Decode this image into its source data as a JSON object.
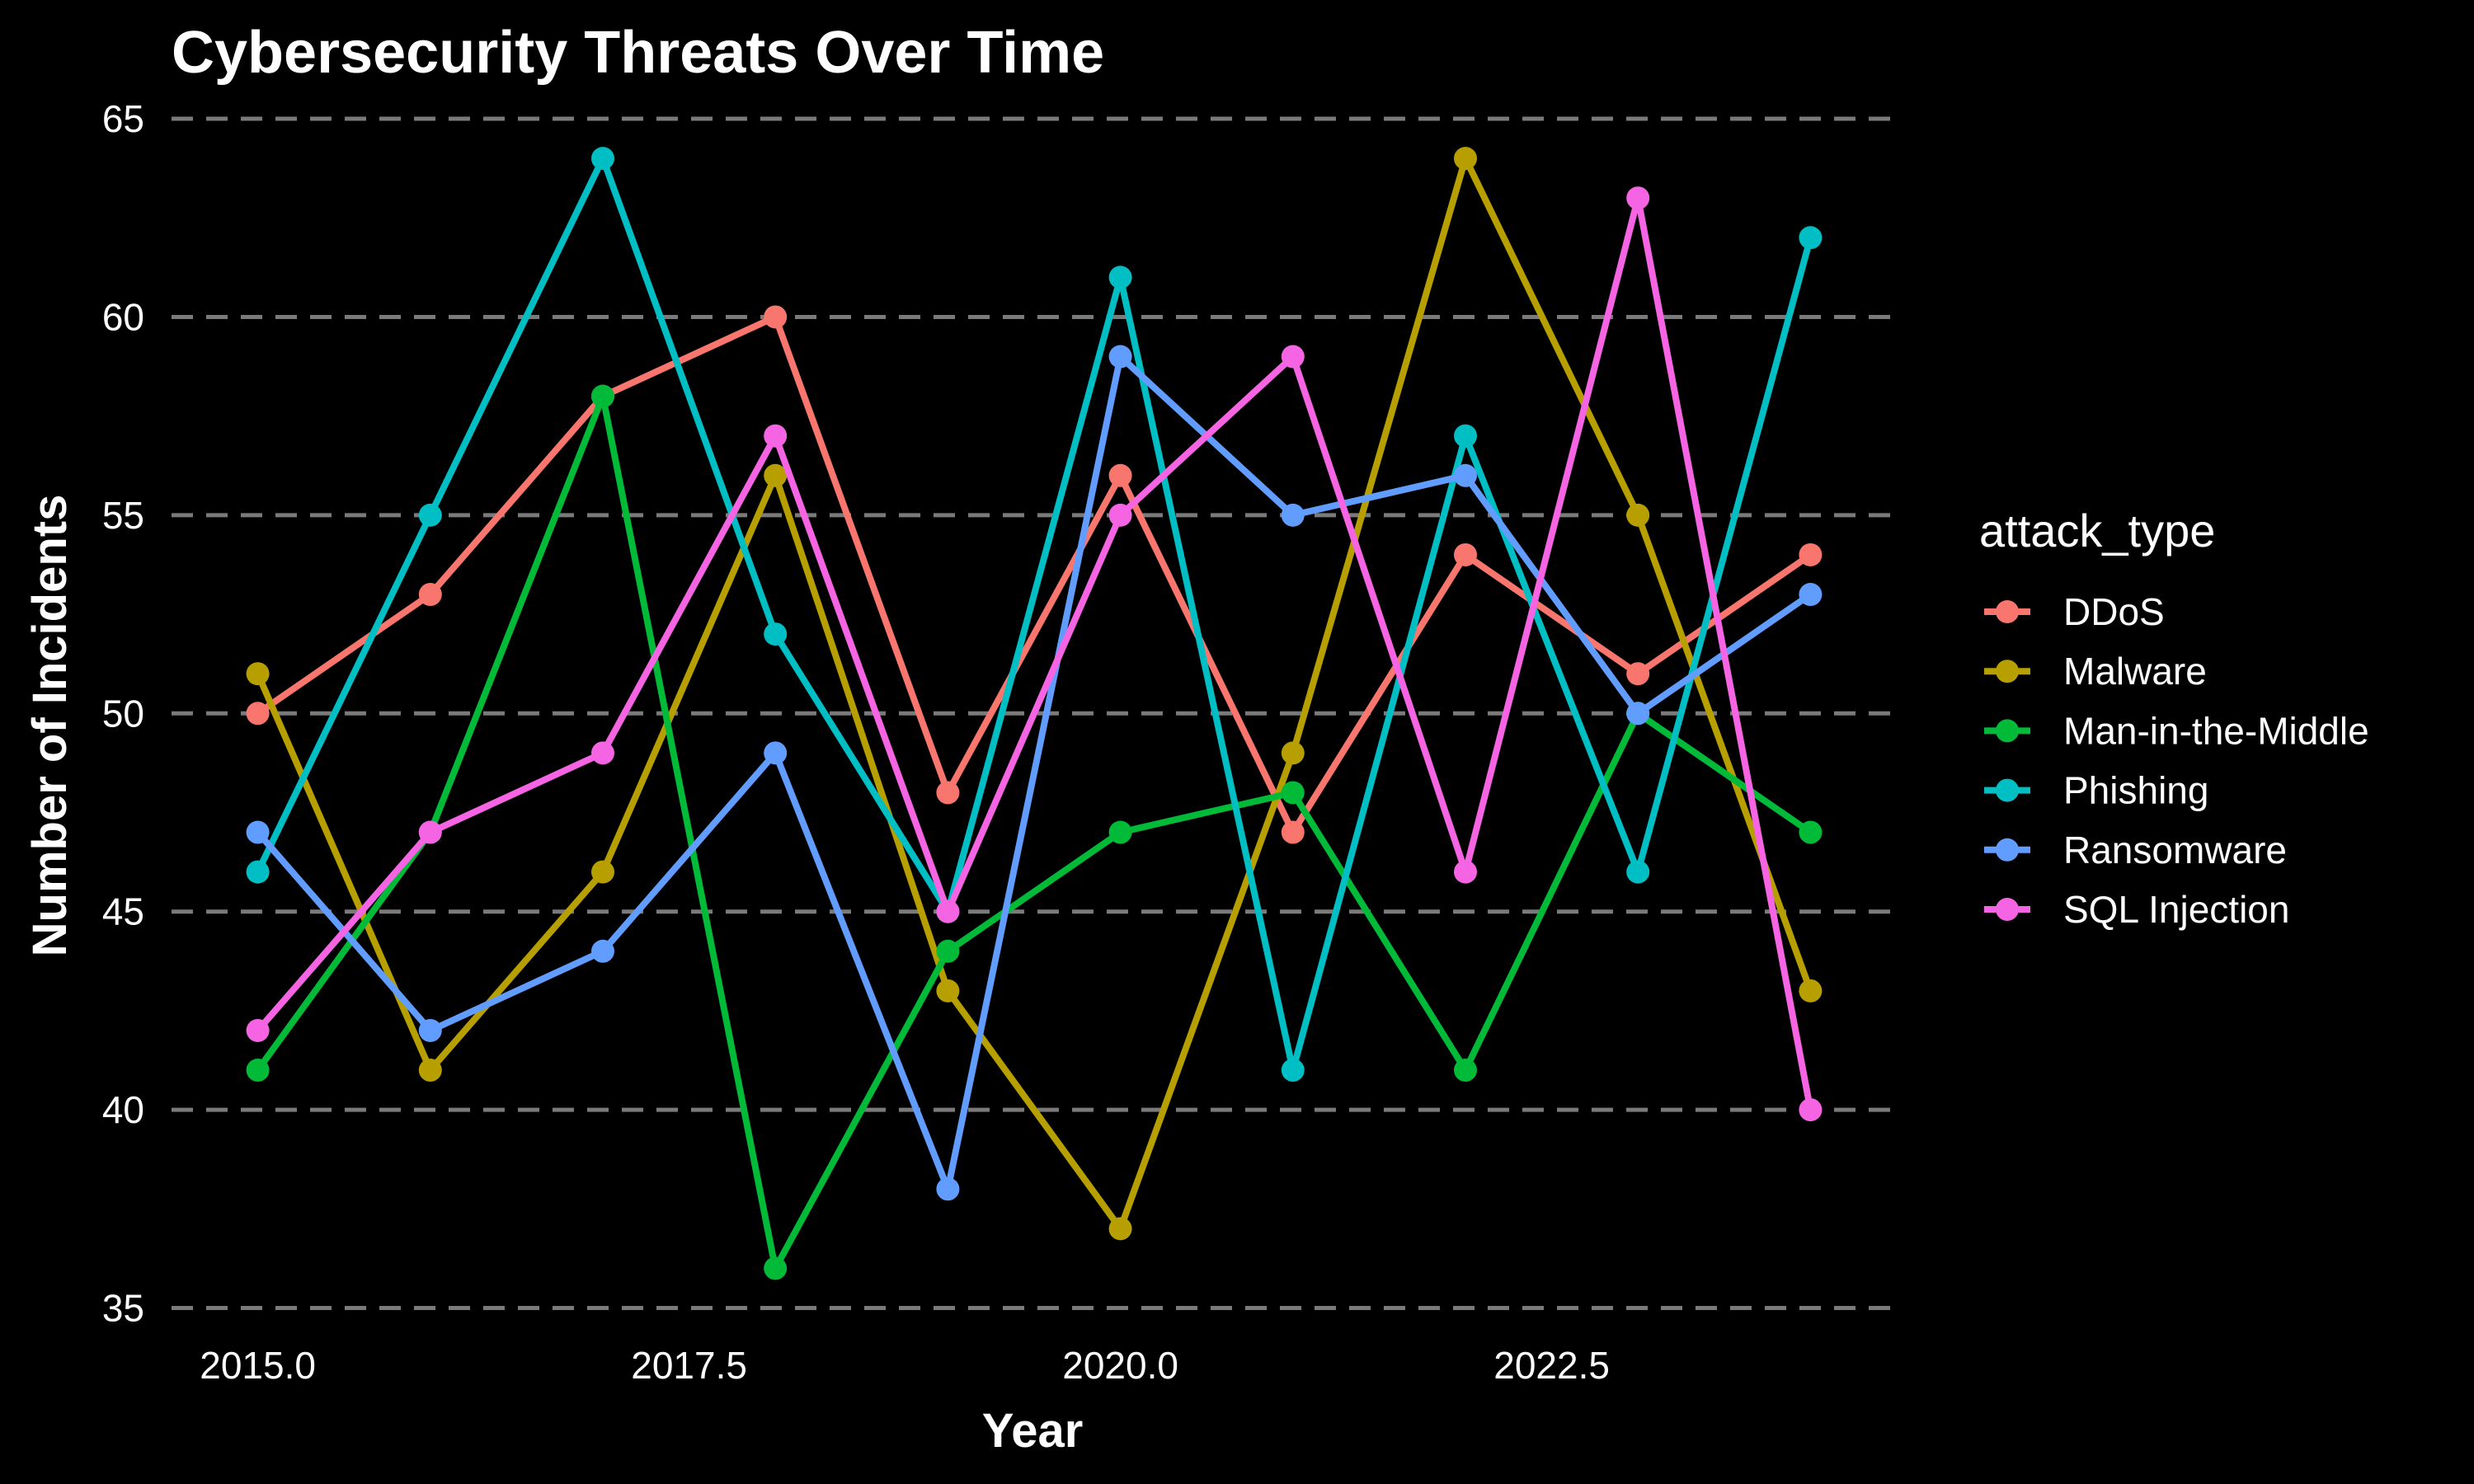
{
  "chart_data": {
    "type": "line",
    "title": "Cybersecurity Threats Over Time",
    "xlabel": "Year",
    "ylabel": "Number of Incidents",
    "legend_title": "attack_type",
    "legend_position": "right",
    "grid": "horizontal-dashed",
    "background": "#000000",
    "xlim": [
      2014.5,
      2024.5
    ],
    "ylim": [
      34.2,
      65.5
    ],
    "x_ticks": [
      2015.0,
      2017.5,
      2020.0,
      2022.5
    ],
    "x_tick_labels": [
      "2015.0",
      "2017.5",
      "2020.0",
      "2022.5"
    ],
    "y_ticks": [
      35,
      40,
      45,
      50,
      55,
      60,
      65
    ],
    "y_tick_labels": [
      "35",
      "40",
      "45",
      "50",
      "55",
      "60",
      "65"
    ],
    "x": [
      2015,
      2016,
      2017,
      2018,
      2019,
      2020,
      2021,
      2022,
      2023,
      2024
    ],
    "series": [
      {
        "name": "DDoS",
        "color": "#F8766D",
        "values": [
          50,
          53,
          58,
          60,
          48,
          56,
          47,
          54,
          51,
          54
        ]
      },
      {
        "name": "Malware",
        "color": "#B79F00",
        "values": [
          51,
          41,
          46,
          56,
          43,
          37,
          49,
          64,
          55,
          43
        ]
      },
      {
        "name": "Man-in-the-Middle",
        "color": "#00BA38",
        "values": [
          41,
          47,
          58,
          36,
          44,
          47,
          48,
          41,
          50,
          47
        ]
      },
      {
        "name": "Phishing",
        "color": "#00BFC4",
        "values": [
          46,
          55,
          64,
          52,
          45,
          61,
          41,
          57,
          46,
          62
        ]
      },
      {
        "name": "Ransomware",
        "color": "#619CFF",
        "values": [
          47,
          42,
          44,
          49,
          38,
          59,
          55,
          56,
          50,
          53
        ]
      },
      {
        "name": "SQL Injection",
        "color": "#F564E3",
        "values": [
          42,
          47,
          49,
          57,
          45,
          55,
          59,
          46,
          63,
          40
        ]
      }
    ]
  }
}
